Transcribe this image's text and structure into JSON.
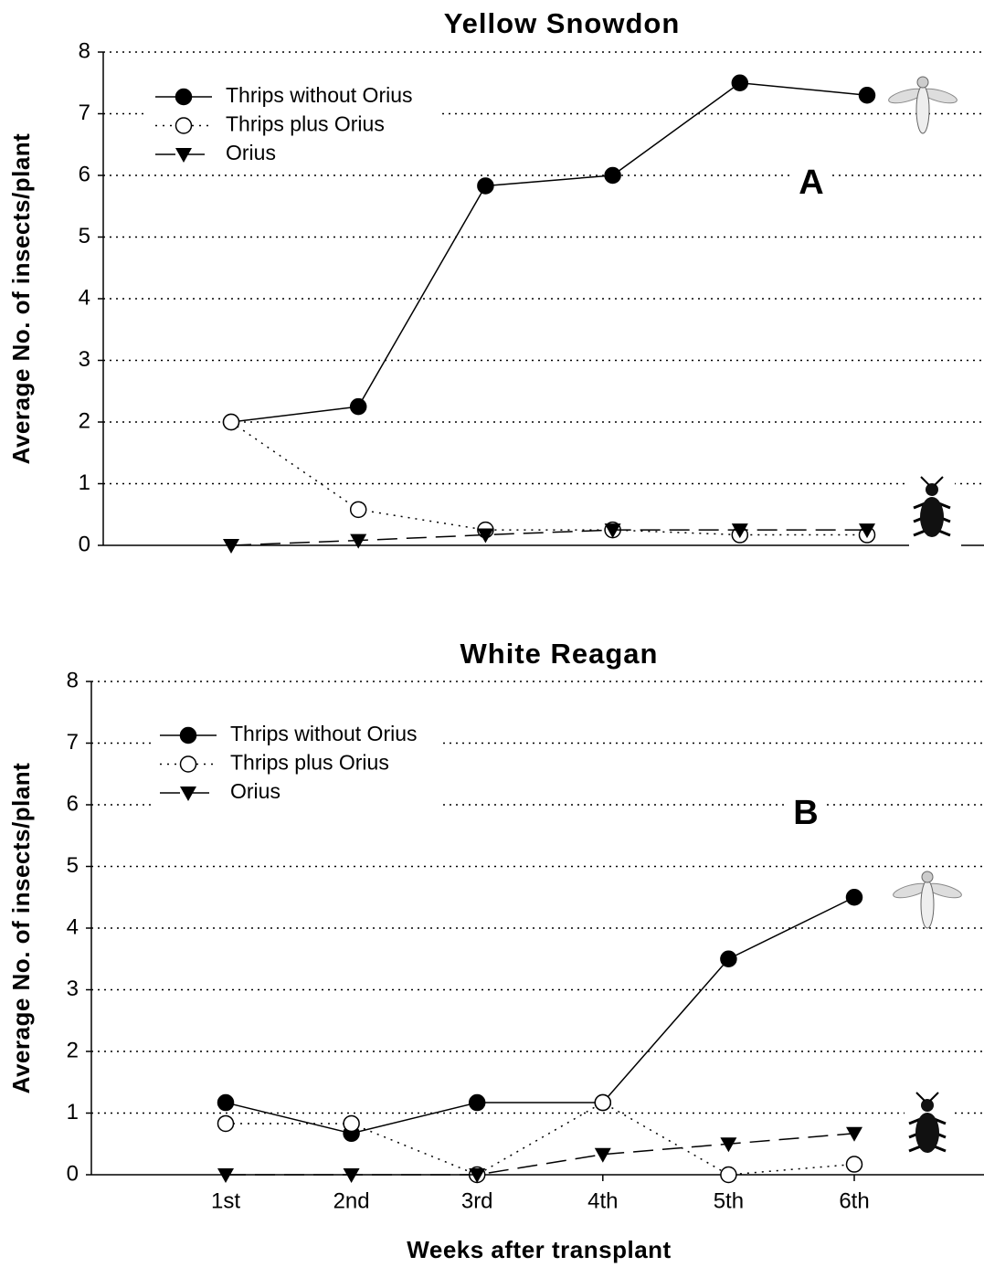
{
  "chart_data": [
    {
      "type": "line",
      "title": "Yellow Snowdon",
      "ylabel": "Average No. of insects/plant",
      "annotation": "A",
      "categories": [
        null,
        null,
        null,
        null,
        null,
        null
      ],
      "ylim": [
        0,
        8
      ],
      "yticks": [
        0,
        1,
        2,
        3,
        4,
        5,
        6,
        7,
        8
      ],
      "grid": true,
      "legend": "upper left",
      "series": [
        {
          "name": "Thrips without Orius",
          "color": "#000000",
          "dash": "solid",
          "marker": "circle",
          "values": [
            2.0,
            2.25,
            5.83,
            6.0,
            7.5,
            7.3
          ]
        },
        {
          "name": "Thrips plus Orius",
          "color": "#000000",
          "dash": "dotted",
          "marker": "open-circle",
          "values": [
            2.0,
            0.58,
            0.25,
            0.25,
            0.17,
            0.17
          ]
        },
        {
          "name": "Orius",
          "color": "#000000",
          "dash": "dashed",
          "marker": "triangle-down",
          "values": [
            0,
            0.08,
            0.17,
            0.25,
            0.25,
            0.25
          ]
        }
      ]
    },
    {
      "type": "line",
      "title": "White Reagan",
      "ylabel": "Average No. of insects/plant",
      "xlabel": "Weeks after transplant",
      "annotation": "B",
      "categories": [
        "1st",
        "2nd",
        "3rd",
        "4th",
        "5th",
        "6th"
      ],
      "ylim": [
        0,
        8
      ],
      "yticks": [
        0,
        1,
        2,
        3,
        4,
        5,
        6,
        7,
        8
      ],
      "grid": true,
      "legend": "upper left",
      "series": [
        {
          "name": "Thrips without Orius",
          "color": "#000000",
          "dash": "solid",
          "marker": "circle",
          "values": [
            1.17,
            0.67,
            1.17,
            1.17,
            3.5,
            4.5
          ]
        },
        {
          "name": "Thrips plus Orius",
          "color": "#000000",
          "dash": "dotted",
          "marker": "open-circle",
          "values": [
            0.83,
            0.83,
            0,
            1.17,
            0,
            0.17
          ]
        },
        {
          "name": "Orius",
          "color": "#000000",
          "dash": "dashed",
          "marker": "triangle-down",
          "values": [
            0,
            0,
            0,
            0.33,
            0.5,
            0.67
          ]
        }
      ]
    }
  ]
}
